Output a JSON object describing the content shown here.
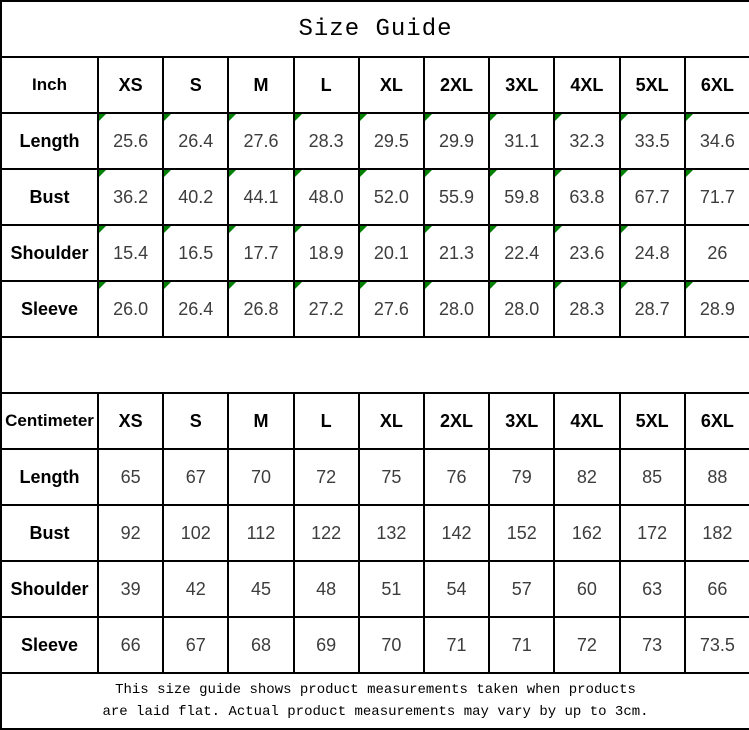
{
  "title": "Size Guide",
  "colors": {
    "border": "#000000",
    "flag_green": "#008000",
    "text": "#000000",
    "value_text": "#3d3d3d"
  },
  "tables": [
    {
      "unit_label": "Inch",
      "sizes": [
        "XS",
        "S",
        "M",
        "L",
        "XL",
        "2XL",
        "3XL",
        "4XL",
        "5XL",
        "6XL"
      ],
      "rows": [
        {
          "label": "Length",
          "values": [
            "25.6",
            "26.4",
            "27.6",
            "28.3",
            "29.5",
            "29.9",
            "31.1",
            "32.3",
            "33.5",
            "34.6"
          ],
          "flags": [
            true,
            true,
            true,
            true,
            true,
            true,
            true,
            true,
            true,
            true
          ]
        },
        {
          "label": "Bust",
          "values": [
            "36.2",
            "40.2",
            "44.1",
            "48.0",
            "52.0",
            "55.9",
            "59.8",
            "63.8",
            "67.7",
            "71.7"
          ],
          "flags": [
            true,
            true,
            true,
            true,
            true,
            true,
            true,
            true,
            true,
            true
          ]
        },
        {
          "label": "Shoulder",
          "values": [
            "15.4",
            "16.5",
            "17.7",
            "18.9",
            "20.1",
            "21.3",
            "22.4",
            "23.6",
            "24.8",
            "26"
          ],
          "flags": [
            true,
            true,
            true,
            true,
            true,
            true,
            true,
            true,
            true,
            false
          ]
        },
        {
          "label": "Sleeve",
          "values": [
            "26.0",
            "26.4",
            "26.8",
            "27.2",
            "27.6",
            "28.0",
            "28.0",
            "28.3",
            "28.7",
            "28.9"
          ],
          "flags": [
            true,
            true,
            true,
            true,
            true,
            true,
            true,
            true,
            true,
            true
          ]
        }
      ]
    },
    {
      "unit_label": "Centimeter",
      "sizes": [
        "XS",
        "S",
        "M",
        "L",
        "XL",
        "2XL",
        "3XL",
        "4XL",
        "5XL",
        "6XL"
      ],
      "rows": [
        {
          "label": "Length",
          "values": [
            "65",
            "67",
            "70",
            "72",
            "75",
            "76",
            "79",
            "82",
            "85",
            "88"
          ],
          "flags": [
            false,
            false,
            false,
            false,
            false,
            false,
            false,
            false,
            false,
            false
          ]
        },
        {
          "label": "Bust",
          "values": [
            "92",
            "102",
            "112",
            "122",
            "132",
            "142",
            "152",
            "162",
            "172",
            "182"
          ],
          "flags": [
            false,
            false,
            false,
            false,
            false,
            false,
            false,
            false,
            false,
            false
          ]
        },
        {
          "label": "Shoulder",
          "values": [
            "39",
            "42",
            "45",
            "48",
            "51",
            "54",
            "57",
            "60",
            "63",
            "66"
          ],
          "flags": [
            false,
            false,
            false,
            false,
            false,
            false,
            false,
            false,
            false,
            false
          ]
        },
        {
          "label": "Sleeve",
          "values": [
            "66",
            "67",
            "68",
            "69",
            "70",
            "71",
            "71",
            "72",
            "73",
            "73.5"
          ],
          "flags": [
            false,
            false,
            false,
            false,
            false,
            false,
            false,
            false,
            false,
            false
          ]
        }
      ]
    }
  ],
  "footer": {
    "line1": "This size guide shows product measurements taken when products",
    "line2": "are laid flat. Actual product measurements may vary by up to 3cm."
  }
}
